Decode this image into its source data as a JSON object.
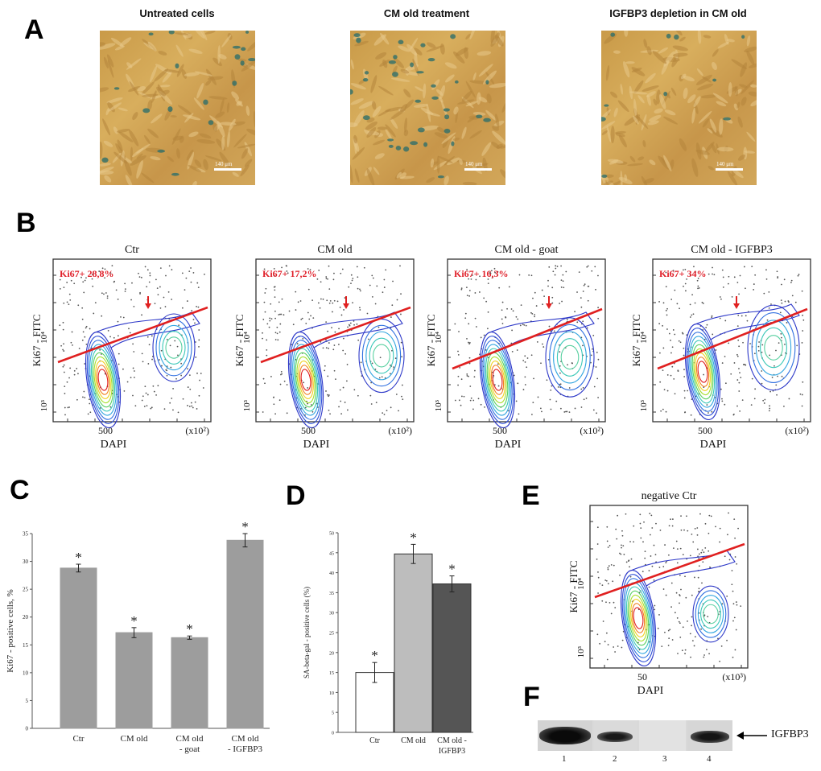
{
  "panels": {
    "A": "A",
    "B": "B",
    "C": "C",
    "D": "D",
    "E": "E",
    "F": "F"
  },
  "panel_a": {
    "titles": [
      "Untreated cells",
      "CM old treatment",
      "IGFBP3 depletion in CM old"
    ],
    "scale_label": "140 μm"
  },
  "panel_b": {
    "plots": [
      {
        "title": "Ctr",
        "ki67": "Ki67+  28,8%"
      },
      {
        "title": "CM  old",
        "ki67": "Ki67+   17,2%"
      },
      {
        "title": "CM old - goat",
        "ki67": "Ki67+   16,3%"
      },
      {
        "title": "CM old - IGFBP3",
        "ki67": "Ki67+   34%"
      }
    ],
    "y_label": "Ki67 - FITC",
    "x_label": "DAPI",
    "x_tick": "500",
    "x_multiplier": "(x10²)",
    "y_tick_high": "10⁴",
    "y_tick_low": "10³",
    "line_color": "#e02020",
    "label_color": "#e0202a"
  },
  "panel_e": {
    "title": "negative Ctr",
    "y_label": "Ki67 - FITC",
    "x_label": "DAPI",
    "x_tick": "50",
    "x_multiplier": "(x10³)",
    "y_tick_high": "10⁴",
    "y_tick_low": "10³"
  },
  "panel_f": {
    "lane_labels": [
      "1",
      "2",
      "3",
      "4"
    ],
    "band_label": "IGFBP3"
  },
  "chart_data": [
    {
      "id": "C",
      "type": "bar",
      "title": "",
      "xlabel": "",
      "ylabel": "Ki67 - positive cells, %",
      "categories": [
        "Ctr",
        "CM old",
        "CM old\n- goat",
        "CM old\n- IGFBP3"
      ],
      "category_lines": [
        [
          "Ctr"
        ],
        [
          "CM old"
        ],
        [
          "CM old",
          "- goat"
        ],
        [
          "CM old",
          "- IGFBP3"
        ]
      ],
      "values": [
        28.8,
        17.2,
        16.3,
        33.8
      ],
      "errors": [
        0.7,
        0.9,
        0.3,
        1.2
      ],
      "significance": [
        "*",
        "*",
        "*",
        "*"
      ],
      "yticks": [
        "0",
        "5",
        "10",
        "15",
        "20",
        "25",
        "30",
        "35"
      ],
      "ylim": [
        0,
        35
      ],
      "bar_colors": [
        "#9d9d9d",
        "#9d9d9d",
        "#9d9d9d",
        "#9d9d9d"
      ],
      "grid": false
    },
    {
      "id": "D",
      "type": "bar",
      "title": "",
      "xlabel": "",
      "ylabel": "SA-beta-gal - positive cells (%)",
      "categories": [
        "Ctr",
        "CM old",
        "CM old -\nIGFBP3"
      ],
      "category_lines": [
        [
          "Ctr"
        ],
        [
          "CM old"
        ],
        [
          "CM old -",
          "IGFBP3"
        ]
      ],
      "values": [
        15,
        44.7,
        37.2
      ],
      "errors": [
        2.5,
        2.4,
        2.0
      ],
      "significance": [
        "*",
        "*",
        "*"
      ],
      "yticks": [
        "0",
        "5",
        "10",
        "15",
        "20",
        "25",
        "30",
        "35",
        "40",
        "45",
        "50"
      ],
      "ylim": [
        0,
        50
      ],
      "bar_colors": [
        "#ffffff",
        "#bdbdbd",
        "#555555"
      ],
      "grid": false
    }
  ]
}
